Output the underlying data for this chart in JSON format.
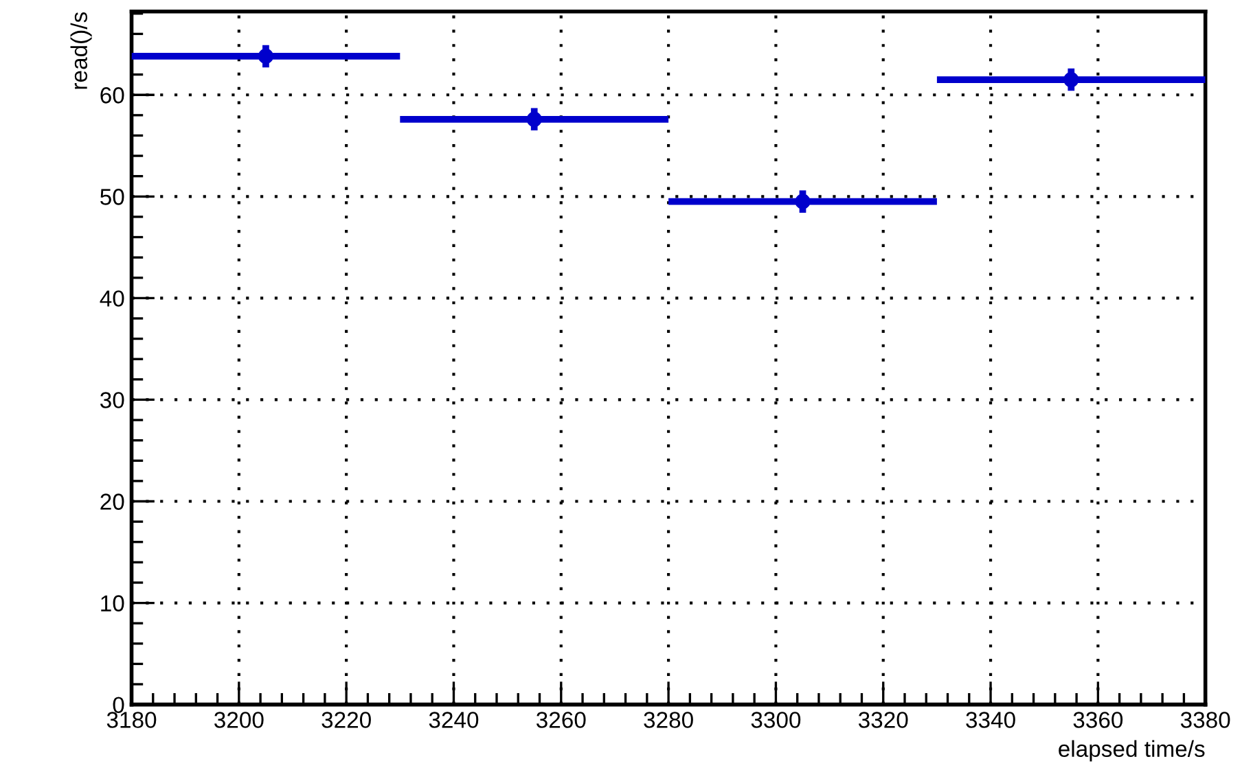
{
  "chart_data": {
    "type": "scatter",
    "xlabel": "elapsed time/s",
    "ylabel": "read()/s",
    "x": [
      3205,
      3255,
      3305,
      3355
    ],
    "series": [
      {
        "color": "#0000cc",
        "values": [
          63.8,
          57.6,
          49.5,
          61.5
        ],
        "errors": [
          1.1,
          1.1,
          1.1,
          1.1
        ],
        "xerrors": [
          25,
          25,
          25,
          25
        ]
      }
    ],
    "marker": "circle",
    "xlim": [
      3180,
      3380
    ],
    "xticks": [
      3180,
      3200,
      3220,
      3240,
      3260,
      3280,
      3300,
      3320,
      3340,
      3360,
      3380
    ],
    "ylim": [
      0,
      68.2
    ],
    "yticks": [
      0,
      10,
      20,
      30,
      40,
      50,
      60
    ],
    "grid": true
  }
}
